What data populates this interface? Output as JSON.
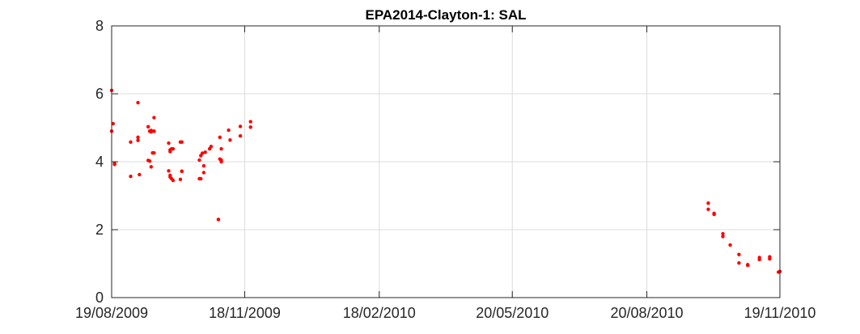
{
  "chart_data": {
    "type": "scatter",
    "title": "EPA2014-Clayton-1: SAL",
    "xlabel": "",
    "ylabel": "",
    "x_range": [
      "2009-08-19",
      "2010-11-19"
    ],
    "ylim": [
      0,
      8
    ],
    "x_ticks": [
      "19/08/2009",
      "18/11/2009",
      "18/02/2010",
      "20/05/2010",
      "20/08/2010",
      "19/11/2010"
    ],
    "y_ticks": [
      "0",
      "2",
      "4",
      "6",
      "8"
    ],
    "grid": true,
    "legend": "none",
    "marker_color": "#ff0000",
    "series": [
      {
        "x": [
          "2009-08-19",
          "2009-08-19",
          "2009-08-20",
          "2009-08-21",
          "2009-08-21",
          "2009-09-01",
          "2009-09-01",
          "2009-09-06",
          "2009-09-06",
          "2009-09-06",
          "2009-09-07",
          "2009-09-13",
          "2009-09-13",
          "2009-09-14",
          "2009-09-14",
          "2009-09-15",
          "2009-09-15",
          "2009-09-15",
          "2009-09-16",
          "2009-09-17",
          "2009-09-17",
          "2009-09-17",
          "2009-09-17",
          "2009-09-27",
          "2009-09-27",
          "2009-09-28",
          "2009-09-28",
          "2009-09-28",
          "2009-09-28",
          "2009-09-29",
          "2009-09-29",
          "2009-09-30",
          "2009-09-30",
          "2009-10-05",
          "2009-10-05",
          "2009-10-06",
          "2009-10-06",
          "2009-10-06",
          "2009-10-18",
          "2009-10-18",
          "2009-10-19",
          "2009-10-19",
          "2009-10-20",
          "2009-10-21",
          "2009-10-21",
          "2009-10-22",
          "2009-10-25",
          "2009-10-26",
          "2009-10-31",
          "2009-10-31",
          "2009-11-01",
          "2009-11-01",
          "2009-11-02",
          "2009-11-02",
          "2009-11-02",
          "2009-11-07",
          "2009-11-08",
          "2009-11-15",
          "2009-11-15",
          "2009-11-22",
          "2009-11-22",
          "2010-10-01",
          "2010-10-01",
          "2010-10-05",
          "2010-10-05",
          "2010-10-11",
          "2010-10-11",
          "2010-10-16",
          "2010-10-22",
          "2010-10-22",
          "2010-10-28",
          "2010-10-28",
          "2010-11-05",
          "2010-11-05",
          "2010-11-12",
          "2010-11-12",
          "2010-11-18",
          "2010-11-19"
        ],
        "y": [
          6.1,
          4.9,
          5.12,
          3.95,
          3.92,
          4.58,
          3.57,
          5.74,
          4.72,
          4.63,
          3.62,
          5.03,
          4.04,
          4.02,
          4.9,
          4.92,
          3.85,
          4.88,
          4.26,
          5.3,
          4.26,
          4.9,
          4.9,
          3.73,
          4.55,
          4.3,
          3.55,
          3.6,
          4.35,
          3.5,
          4.38,
          3.45,
          4.38,
          3.48,
          4.58,
          4.58,
          3.72,
          3.72,
          4.05,
          3.5,
          3.5,
          4.18,
          4.25,
          3.68,
          3.88,
          4.28,
          4.38,
          4.45,
          2.3,
          2.3,
          4.72,
          4.08,
          4.05,
          4.38,
          4.0,
          4.93,
          4.64,
          4.76,
          5.04,
          5.18,
          5.02,
          2.78,
          2.6,
          2.48,
          2.45,
          1.88,
          1.8,
          1.55,
          1.27,
          1.02,
          0.95,
          0.97,
          1.18,
          1.12,
          1.2,
          1.14,
          0.75,
          0.77
        ]
      }
    ]
  }
}
